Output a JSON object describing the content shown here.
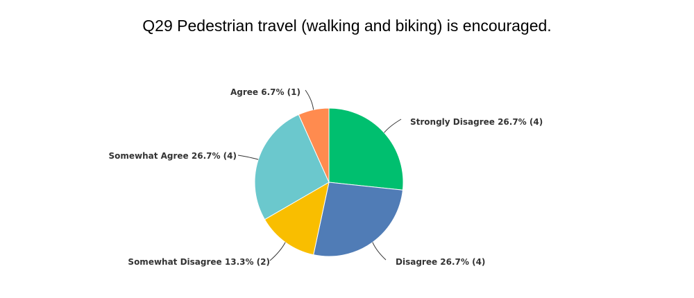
{
  "chart_data": {
    "type": "pie",
    "title": "Q29 Pedestrian travel (walking and biking) is encouraged.",
    "slices": [
      {
        "name": "Strongly Disagree",
        "percent": 26.7,
        "count": 4,
        "label": "Strongly Disagree 26.7% (4)",
        "color": "#00BF6F"
      },
      {
        "name": "Disagree",
        "percent": 26.7,
        "count": 4,
        "label": "Disagree 26.7% (4)",
        "color": "#507CB6"
      },
      {
        "name": "Somewhat Disagree",
        "percent": 13.3,
        "count": 2,
        "label": "Somewhat Disagree 13.3% (2)",
        "color": "#F9BE00"
      },
      {
        "name": "Somewhat Agree",
        "percent": 26.7,
        "count": 4,
        "label": "Somewhat Agree 26.7% (4)",
        "color": "#6BC8CD"
      },
      {
        "name": "Agree",
        "percent": 6.7,
        "count": 1,
        "label": "Agree 6.7% (1)",
        "color": "#FF8B4F"
      }
    ]
  }
}
